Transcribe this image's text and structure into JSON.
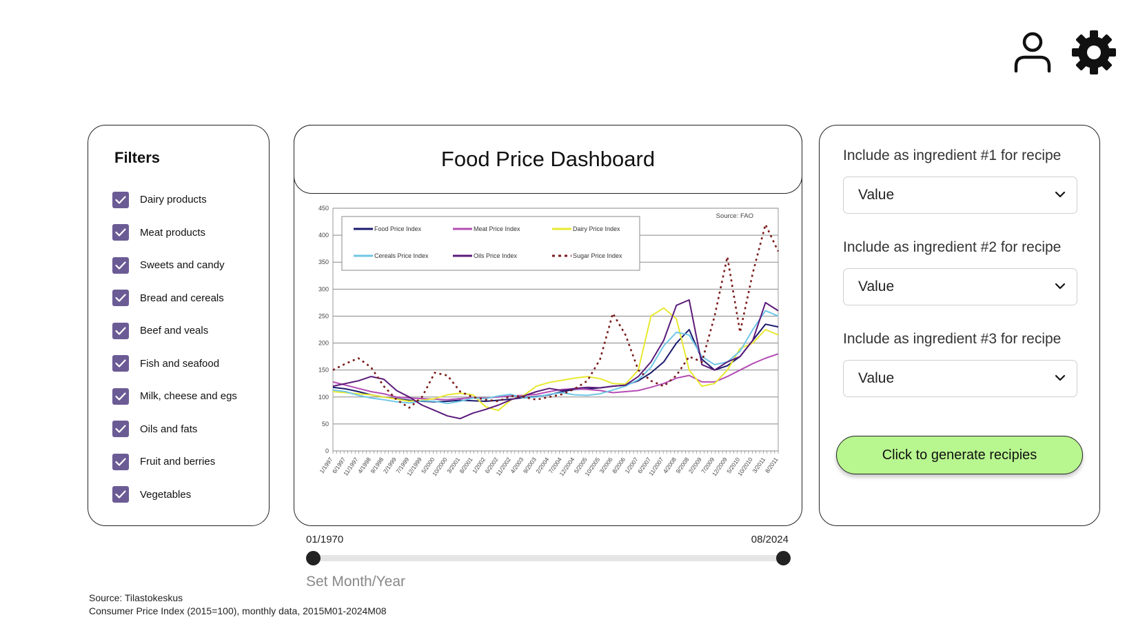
{
  "header": {
    "user_icon": "user-icon",
    "settings_icon": "gear-icon"
  },
  "filters": {
    "title": "Filters",
    "items": [
      {
        "label": "Dairy products",
        "checked": true
      },
      {
        "label": "Meat products",
        "checked": true
      },
      {
        "label": "Sweets and candy",
        "checked": true
      },
      {
        "label": "Bread and cereals",
        "checked": true
      },
      {
        "label": "Beef and veals",
        "checked": true
      },
      {
        "label": "Fish and seafood",
        "checked": true
      },
      {
        "label": "Milk, cheese and egs",
        "checked": true
      },
      {
        "label": "Oils and fats",
        "checked": true
      },
      {
        "label": "Fruit and berries",
        "checked": true
      },
      {
        "label": "Vegetables",
        "checked": true
      }
    ]
  },
  "main": {
    "title": "Food Price Dashboard"
  },
  "range": {
    "start_label": "01/1970",
    "end_label": "08/2024",
    "start_fraction": 0,
    "end_fraction": 1,
    "caption": "Set Month/Year"
  },
  "source": {
    "line1": "Source: Tilastokeskus",
    "line2": "Consumer Price Index (2015=100), monthly data, 2015M01-2024M08"
  },
  "recipe": {
    "ingredients": [
      {
        "label": "Include as ingredient #1 for recipe",
        "value": "Value"
      },
      {
        "label": "Include as ingredient #2 for recipe",
        "value": "Value"
      },
      {
        "label": "Include as ingredient #3 for recipe",
        "value": "Value"
      }
    ],
    "generate_label": "Click to generate recipies"
  },
  "colors": {
    "accent_checkbox": "#6b5b95",
    "generate_button": "#b8f68f"
  },
  "chart_data": {
    "type": "line",
    "source_note": "Source: FAO",
    "ylim": [
      0,
      450
    ],
    "y_ticks": [
      0,
      50,
      100,
      150,
      200,
      250,
      300,
      350,
      400,
      450
    ],
    "x_ticks": [
      "1/1997",
      "6/1997",
      "11/1997",
      "4/1998",
      "9/1998",
      "2/1999",
      "7/1999",
      "12/1999",
      "5/2000",
      "10/2000",
      "3/2001",
      "8/2001",
      "1/2002",
      "6/2002",
      "11/2002",
      "4/2003",
      "9/2003",
      "2/2004",
      "7/2004",
      "12/2004",
      "5/2005",
      "10/2005",
      "3/2006",
      "8/2006",
      "1/2007",
      "6/2007",
      "11/2007",
      "4/2008",
      "9/2008",
      "2/2009",
      "7/2009",
      "12/2009",
      "5/2010",
      "10/2010",
      "3/2011",
      "8/2011"
    ],
    "legend_placement": "top-left",
    "grid": true,
    "series": [
      {
        "name": "Food Price Index",
        "color": "#1a1a6e",
        "style": "solid",
        "values": [
          118,
          115,
          110,
          104,
          100,
          97,
          94,
          92,
          91,
          92,
          94,
          93,
          92,
          94,
          96,
          99,
          101,
          104,
          110,
          114,
          115,
          117,
          120,
          122,
          130,
          145,
          165,
          200,
          225,
          170,
          150,
          158,
          175,
          205,
          235,
          230
        ]
      },
      {
        "name": "Meat Price Index",
        "color": "#b44cb4",
        "style": "solid",
        "values": [
          128,
          122,
          116,
          110,
          106,
          100,
          98,
          97,
          96,
          95,
          97,
          99,
          98,
          100,
          102,
          103,
          105,
          110,
          114,
          115,
          114,
          112,
          108,
          110,
          112,
          118,
          125,
          135,
          140,
          128,
          128,
          138,
          150,
          162,
          172,
          180
        ]
      },
      {
        "name": "Dairy Price Index",
        "color": "#e8e830",
        "style": "solid",
        "values": [
          110,
          108,
          106,
          104,
          100,
          96,
          92,
          94,
          97,
          104,
          107,
          104,
          82,
          75,
          95,
          103,
          120,
          127,
          131,
          135,
          138,
          134,
          125,
          124,
          150,
          250,
          265,
          245,
          150,
          120,
          125,
          150,
          190,
          200,
          225,
          215
        ]
      },
      {
        "name": "Cereals Price Index",
        "color": "#6ec6e6",
        "style": "solid",
        "values": [
          113,
          110,
          103,
          98,
          95,
          91,
          89,
          93,
          92,
          88,
          92,
          98,
          97,
          102,
          105,
          98,
          100,
          105,
          108,
          104,
          103,
          106,
          113,
          120,
          132,
          155,
          195,
          220,
          215,
          175,
          160,
          165,
          185,
          225,
          260,
          250
        ]
      },
      {
        "name": "Oils Price Index",
        "color": "#5a1a7a",
        "style": "solid",
        "values": [
          120,
          125,
          130,
          138,
          133,
          112,
          100,
          85,
          75,
          65,
          60,
          70,
          77,
          85,
          95,
          102,
          110,
          116,
          112,
          116,
          118,
          117,
          120,
          122,
          138,
          165,
          205,
          270,
          280,
          160,
          150,
          165,
          175,
          205,
          275,
          260
        ]
      },
      {
        "name": "Sugar Price Index",
        "color": "#7a1a1a",
        "style": "dashed",
        "values": [
          150,
          162,
          172,
          155,
          120,
          95,
          80,
          100,
          145,
          140,
          110,
          100,
          95,
          92,
          102,
          100,
          95,
          100,
          105,
          115,
          130,
          170,
          255,
          215,
          150,
          130,
          120,
          140,
          175,
          165,
          250,
          360,
          220,
          330,
          420,
          370
        ]
      }
    ]
  }
}
